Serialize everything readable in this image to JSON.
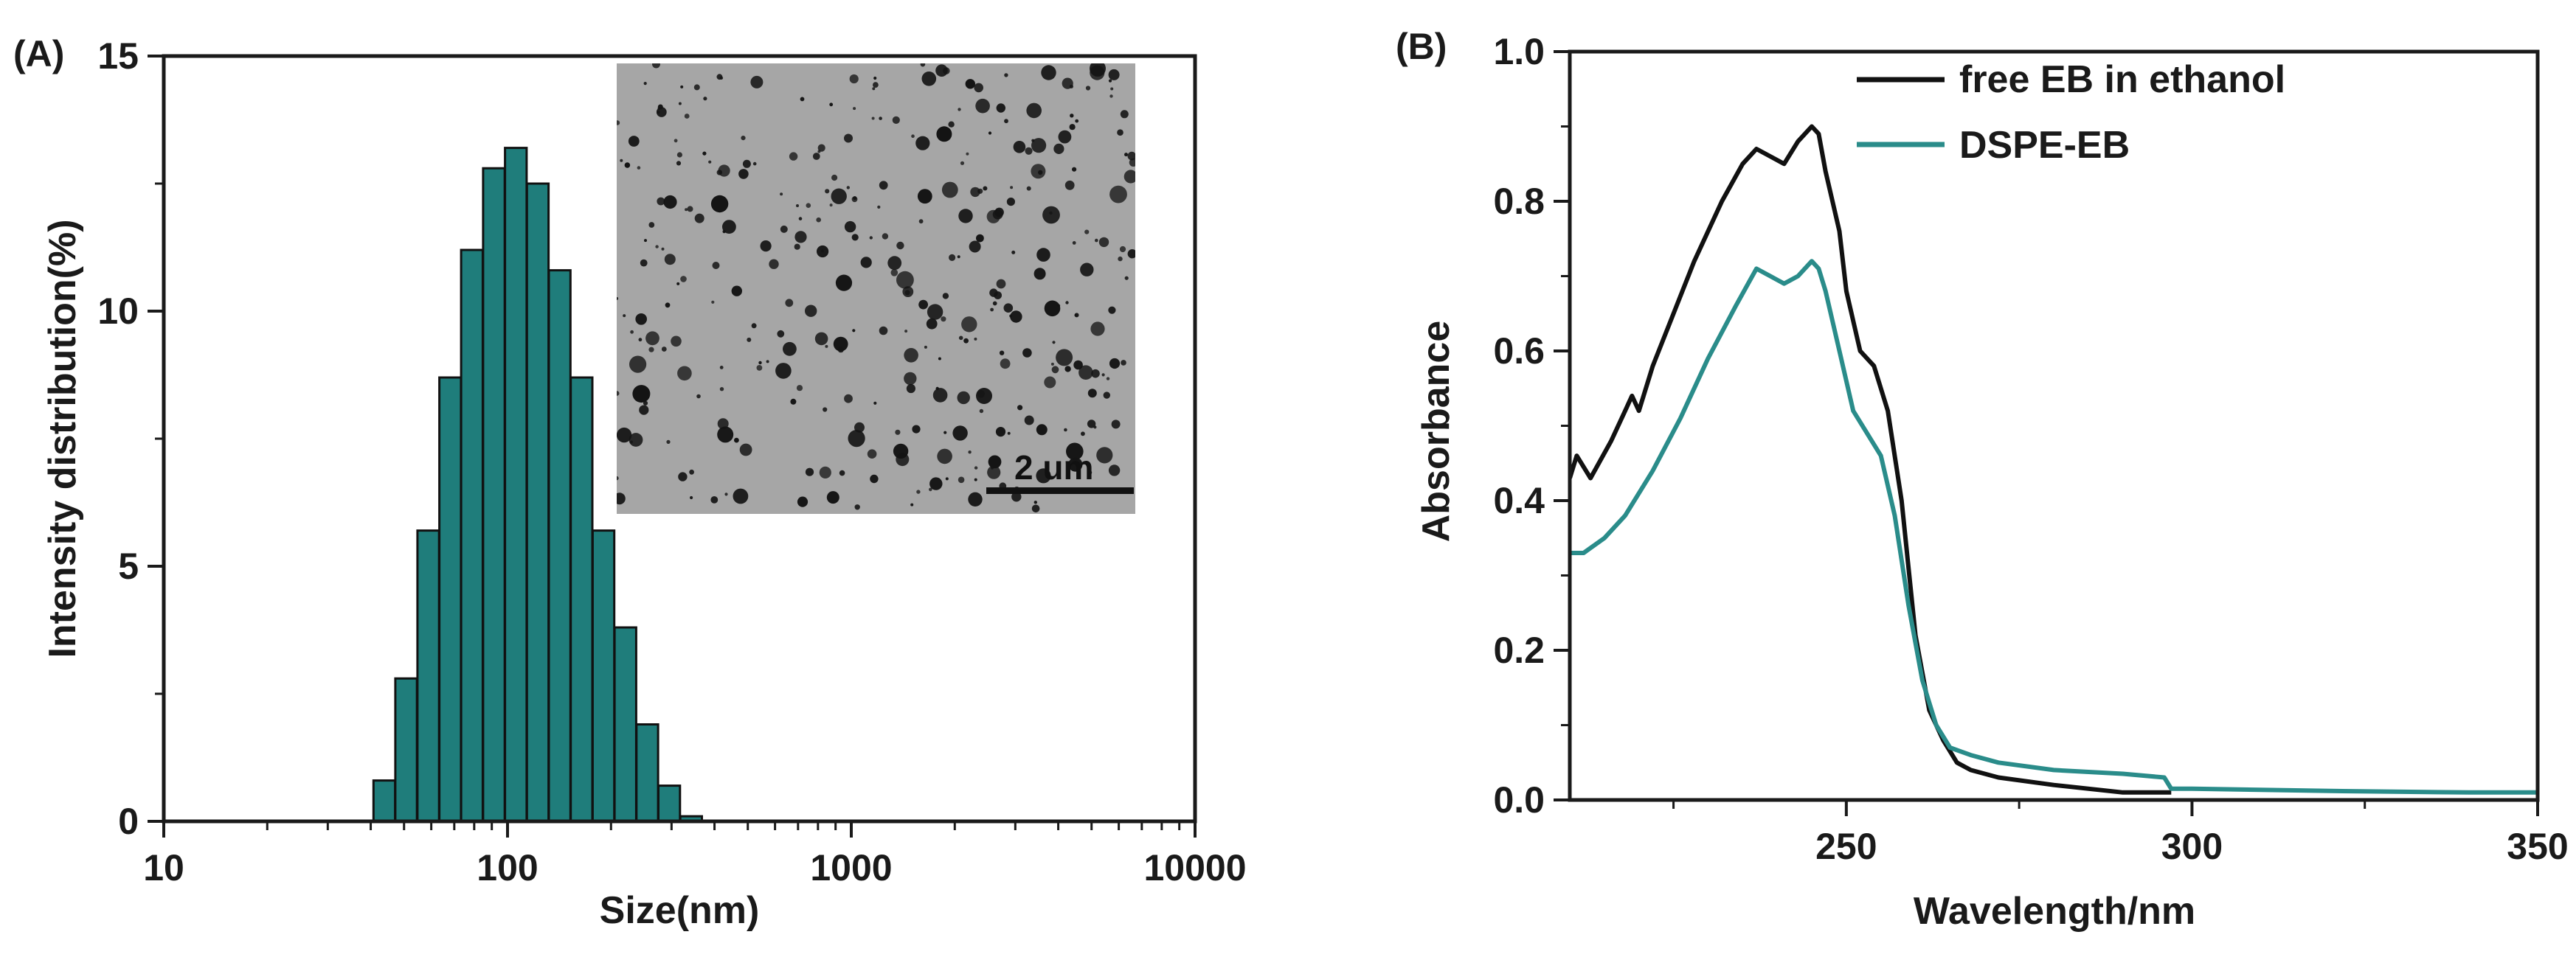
{
  "chart_data": [
    {
      "panel_label": "(A)",
      "type": "bar",
      "x_scale": "log",
      "xlabel": "Size(nm)",
      "ylabel": "Intensity distribution(%)",
      "xlim": [
        10,
        10000
      ],
      "ylim": [
        0,
        15
      ],
      "x_ticks": [
        10,
        100,
        1000,
        10000
      ],
      "x_tick_labels": [
        "10",
        "100",
        "1000",
        "10000"
      ],
      "y_ticks": [
        0,
        5,
        10,
        15
      ],
      "y_tick_labels": [
        "0",
        "5",
        "10",
        "15"
      ],
      "bar_color": "#1f7d7b",
      "series": [
        {
          "name": "DLS size distribution",
          "x": [
            43.8,
            50.7,
            58.8,
            68.1,
            78.8,
            91.3,
            105.7,
            122.4,
            141.8,
            164.2,
            190.1,
            220.2,
            255.0,
            295.3,
            342.0
          ],
          "values": [
            0.8,
            2.8,
            5.7,
            8.7,
            11.2,
            12.8,
            13.2,
            12.5,
            10.8,
            8.7,
            5.7,
            3.8,
            1.9,
            0.7,
            0.1
          ]
        }
      ],
      "inset": {
        "description": "TEM image",
        "scale_bar_label": "2 um"
      }
    },
    {
      "panel_label": "(B)",
      "type": "line",
      "xlabel": "Wavelength/nm",
      "ylabel": "Absorbance",
      "xlim": [
        210,
        350
      ],
      "ylim": [
        0,
        1.0
      ],
      "x_ticks": [
        250,
        300,
        350
      ],
      "x_tick_labels": [
        "250",
        "300",
        "350"
      ],
      "x_minor_ticks": [
        225,
        275,
        325
      ],
      "y_ticks": [
        0.0,
        0.2,
        0.4,
        0.6,
        0.8,
        1.0
      ],
      "y_tick_labels": [
        "0.0",
        "0.2",
        "0.4",
        "0.6",
        "0.8",
        "1.0"
      ],
      "legend": "top-right",
      "series": [
        {
          "name": "free EB in ethanol",
          "color": "#111111",
          "x": [
            210,
            211,
            213,
            216,
            218,
            219,
            220,
            222,
            225,
            228,
            232,
            235,
            237,
            239,
            241,
            243,
            245,
            246,
            247,
            249,
            250,
            252,
            254,
            256,
            258,
            260,
            262,
            264,
            266,
            268,
            272,
            280,
            290,
            297
          ],
          "y": [
            0.43,
            0.46,
            0.43,
            0.48,
            0.52,
            0.54,
            0.52,
            0.58,
            0.65,
            0.72,
            0.8,
            0.85,
            0.87,
            0.86,
            0.85,
            0.88,
            0.9,
            0.89,
            0.84,
            0.76,
            0.68,
            0.6,
            0.58,
            0.52,
            0.4,
            0.22,
            0.12,
            0.08,
            0.05,
            0.04,
            0.03,
            0.02,
            0.01,
            0.01
          ]
        },
        {
          "name": "DSPE-EB",
          "color": "#2a8c8a",
          "x": [
            210,
            212,
            215,
            218,
            222,
            226,
            230,
            234,
            237,
            239,
            241,
            243,
            245,
            246,
            247,
            249,
            251,
            253,
            255,
            257,
            259,
            261,
            263,
            265,
            268,
            272,
            280,
            290,
            296,
            297,
            300,
            320,
            340,
            350
          ],
          "y": [
            0.33,
            0.33,
            0.35,
            0.38,
            0.44,
            0.51,
            0.59,
            0.66,
            0.71,
            0.7,
            0.69,
            0.7,
            0.72,
            0.71,
            0.68,
            0.6,
            0.52,
            0.49,
            0.46,
            0.38,
            0.26,
            0.16,
            0.1,
            0.07,
            0.06,
            0.05,
            0.04,
            0.035,
            0.03,
            0.015,
            0.015,
            0.012,
            0.01,
            0.01
          ]
        }
      ]
    }
  ]
}
